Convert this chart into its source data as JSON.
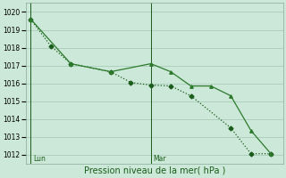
{
  "background_color": "#cce8d8",
  "grid_color": "#aaccbb",
  "line_color_dark": "#1a5c1a",
  "line_color_mid": "#2d7a2d",
  "title": "Pression niveau de la mer( hPa )",
  "ylim": [
    1011.5,
    1020.5
  ],
  "yticks": [
    1012,
    1013,
    1014,
    1015,
    1016,
    1017,
    1018,
    1019,
    1020
  ],
  "vline_x": [
    0.0,
    0.5
  ],
  "vline_labels": [
    "Lun",
    "Mar"
  ],
  "series1_x": [
    0.0,
    0.083,
    0.167,
    0.333,
    0.417,
    0.5,
    0.583,
    0.667,
    0.833,
    0.917,
    1.0
  ],
  "series1_y": [
    1019.6,
    1018.1,
    1017.1,
    1016.65,
    1016.05,
    1015.9,
    1015.85,
    1015.3,
    1013.5,
    1012.05,
    1012.05
  ],
  "series2_x": [
    0.0,
    0.167,
    0.333,
    0.5,
    0.583,
    0.667,
    0.75,
    0.833,
    0.917,
    1.0
  ],
  "series2_y": [
    1019.6,
    1017.1,
    1016.65,
    1017.1,
    1016.65,
    1015.85,
    1015.85,
    1015.3,
    1013.35,
    1012.05
  ],
  "xlim": [
    -0.02,
    1.05
  ],
  "marker_size": 2.5,
  "linewidth": 0.9,
  "ytick_fontsize": 5.5,
  "label_fontsize": 7
}
